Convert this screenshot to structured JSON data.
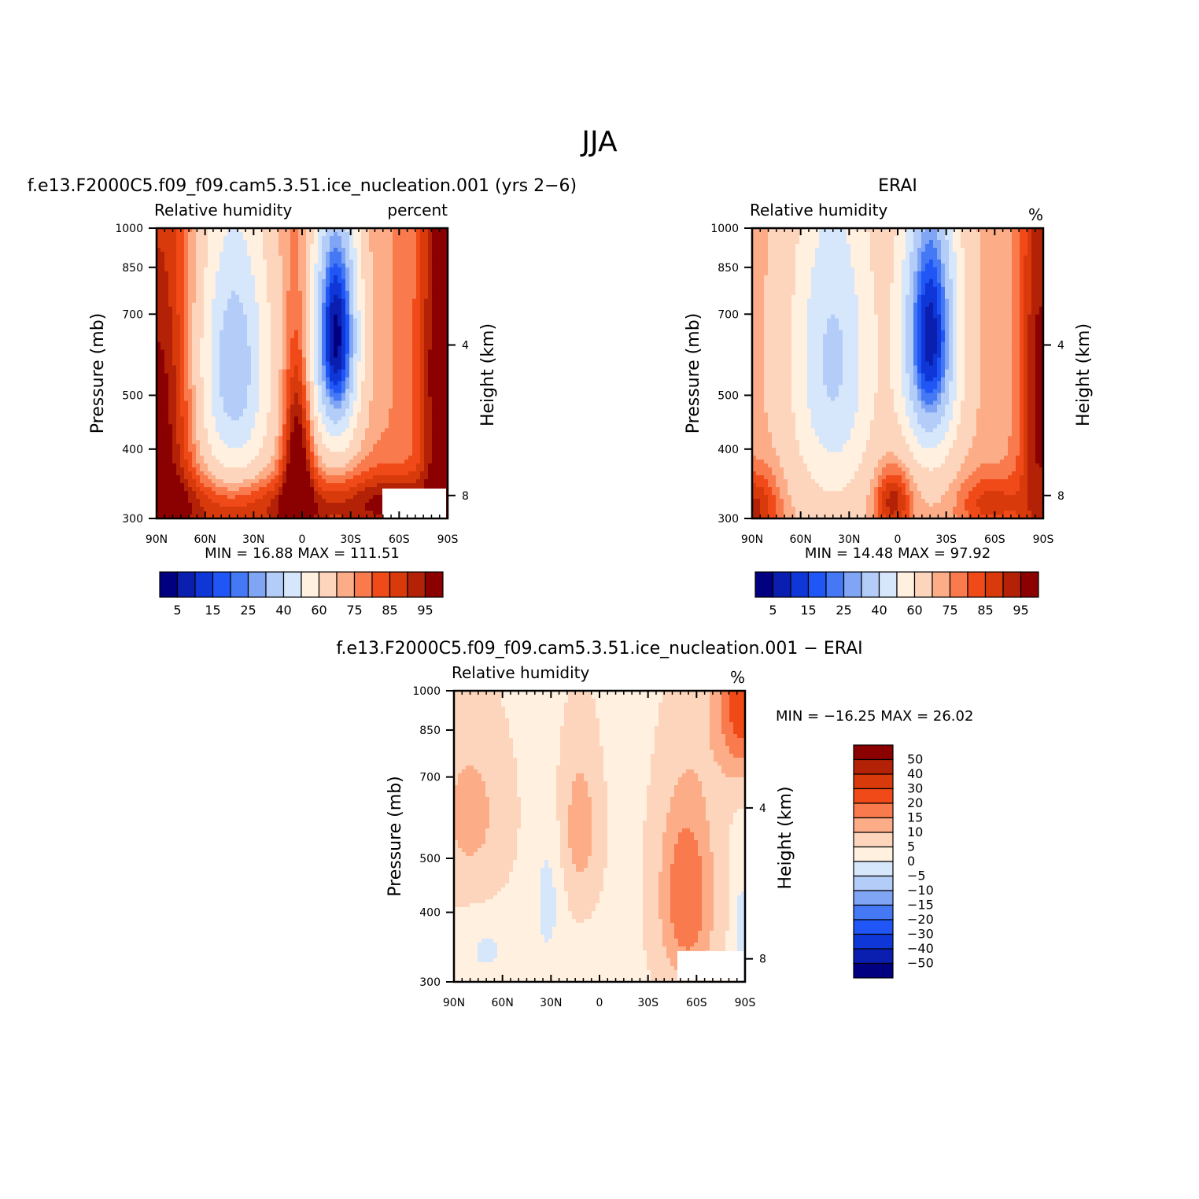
{
  "figure_title": "JJA",
  "chart_data": [
    {
      "type": "heatmap",
      "title": "f.e13.F2000C5.f09_f09.cam5.3.51.ice_nucleation.001 (yrs 2−6)",
      "variable": "Relative humidity",
      "units": "percent",
      "xlabel": "",
      "ylabel": "Pressure (mb)",
      "y2label": "Height (km)",
      "x_ticks": [
        "90N",
        "60N",
        "30N",
        "0",
        "30S",
        "60S",
        "90S"
      ],
      "x_range": [
        90,
        -90
      ],
      "y_ticks": [
        "300",
        "400",
        "500",
        "700",
        "850",
        "1000"
      ],
      "y_range": [
        1000,
        300
      ],
      "y2_ticks": [
        "8",
        "4"
      ],
      "min_label": "MIN =",
      "min_value": "16.88",
      "max_label": "MAX =",
      "max_value": "111.51",
      "levels": [
        5,
        10,
        15,
        20,
        25,
        30,
        40,
        50,
        60,
        70,
        75,
        80,
        85,
        90,
        95
      ],
      "colorbar_labels": [
        "5",
        "15",
        "25",
        "40",
        "60",
        "75",
        "85",
        "95"
      ],
      "colors": [
        "#000080",
        "#0a1fb0",
        "#0f36d6",
        "#1f56f5",
        "#4478f5",
        "#80a5f5",
        "#b4cdf8",
        "#d6e6fb",
        "#fff0e0",
        "#fdd5bd",
        "#fcac87",
        "#f97a4c",
        "#f04a19",
        "#d93a0c",
        "#b32206",
        "#8b0000"
      ]
    },
    {
      "type": "heatmap",
      "title": "ERAI",
      "variable": "Relative humidity",
      "units": "%",
      "xlabel": "",
      "ylabel": "Pressure (mb)",
      "y2label": "Height (km)",
      "x_ticks": [
        "90N",
        "60N",
        "30N",
        "0",
        "30S",
        "60S",
        "90S"
      ],
      "x_range": [
        90,
        -90
      ],
      "y_ticks": [
        "300",
        "400",
        "500",
        "700",
        "850",
        "1000"
      ],
      "y_range": [
        1000,
        300
      ],
      "y2_ticks": [
        "8",
        "4"
      ],
      "min_label": "MIN =",
      "min_value": "14.48",
      "max_label": "MAX =",
      "max_value": "97.92",
      "levels": [
        5,
        10,
        15,
        20,
        25,
        30,
        40,
        50,
        60,
        70,
        75,
        80,
        85,
        90,
        95
      ],
      "colorbar_labels": [
        "5",
        "15",
        "25",
        "40",
        "60",
        "75",
        "85",
        "95"
      ],
      "colors": [
        "#000080",
        "#0a1fb0",
        "#0f36d6",
        "#1f56f5",
        "#4478f5",
        "#80a5f5",
        "#b4cdf8",
        "#d6e6fb",
        "#fff0e0",
        "#fdd5bd",
        "#fcac87",
        "#f97a4c",
        "#f04a19",
        "#d93a0c",
        "#b32206",
        "#8b0000"
      ]
    },
    {
      "type": "heatmap",
      "title": "f.e13.F2000C5.f09_f09.cam5.3.51.ice_nucleation.001 − ERAI",
      "variable": "Relative humidity",
      "units": "%",
      "xlabel": "",
      "ylabel": "Pressure (mb)",
      "y2label": "Height (km)",
      "x_ticks": [
        "90N",
        "60N",
        "30N",
        "0",
        "30S",
        "60S",
        "90S"
      ],
      "x_range": [
        90,
        -90
      ],
      "y_ticks": [
        "300",
        "400",
        "500",
        "700",
        "850",
        "1000"
      ],
      "y_range": [
        1000,
        300
      ],
      "y2_ticks": [
        "8",
        "4"
      ],
      "min_label": "MIN =",
      "min_value": "−16.25",
      "max_label": "MAX =",
      "max_value": "26.02",
      "levels": [
        -50,
        -40,
        -30,
        -20,
        -15,
        -10,
        -5,
        0,
        5,
        10,
        15,
        20,
        30,
        40,
        50
      ],
      "colorbar_labels": [
        "50",
        "40",
        "30",
        "20",
        "15",
        "10",
        "5",
        "0",
        "−5",
        "−10",
        "−15",
        "−20",
        "−30",
        "−40",
        "−50"
      ],
      "colors": [
        "#000080",
        "#0a1fb0",
        "#0f36d6",
        "#1f56f5",
        "#4478f5",
        "#80a5f5",
        "#b4cdf8",
        "#d6e6fb",
        "#fff0e0",
        "#fdd5bd",
        "#fcac87",
        "#f97a4c",
        "#f04a19",
        "#d93a0c",
        "#b32206",
        "#8b0000"
      ]
    }
  ]
}
